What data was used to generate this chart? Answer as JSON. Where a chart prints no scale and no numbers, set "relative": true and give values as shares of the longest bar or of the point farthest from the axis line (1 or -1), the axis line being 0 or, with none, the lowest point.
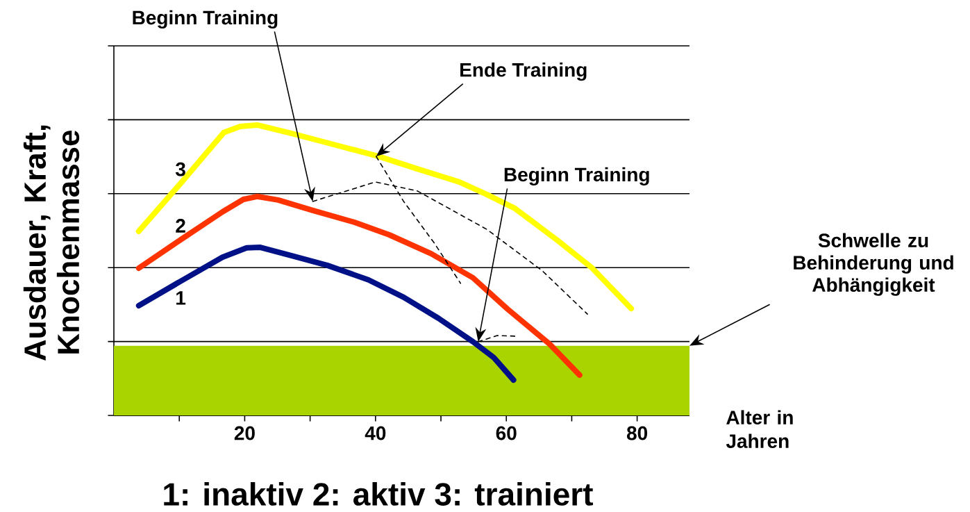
{
  "chart_data": {
    "type": "line",
    "relative": true,
    "xlabel": "Alter in Jahren",
    "ylabel": "Ausdauer, Kraft, Knochenmasse",
    "xlim": [
      0,
      88
    ],
    "xticks": [
      {
        "value": 10,
        "label": null
      },
      20,
      {
        "value": 30,
        "label": null
      },
      40,
      {
        "value": 50,
        "label": null
      },
      60,
      {
        "value": 70,
        "label": null
      },
      80
    ],
    "grid": "y",
    "series": [
      {
        "name": "3",
        "color": "#ffff00",
        "x": [
          3.8,
          10.2,
          16.8,
          19.3,
          21.9,
          27.2,
          33.6,
          40.5,
          46.4,
          52.8,
          57.0,
          61.3,
          67.7,
          73.0,
          79.1
        ],
        "values": [
          0.634,
          0.799,
          0.974,
          0.995,
          1.0,
          0.971,
          0.933,
          0.892,
          0.849,
          0.804,
          0.761,
          0.713,
          0.605,
          0.51,
          0.368
        ]
      },
      {
        "name": "2",
        "color": "#ff3300",
        "x": [
          3.8,
          10.2,
          16.6,
          19.8,
          21.9,
          25.1,
          30.4,
          36.8,
          42.1,
          48.5,
          54.9,
          60.2,
          66.6,
          71.2
        ],
        "values": [
          0.507,
          0.605,
          0.701,
          0.744,
          0.754,
          0.742,
          0.706,
          0.665,
          0.622,
          0.557,
          0.474,
          0.366,
          0.246,
          0.139
        ]
      },
      {
        "name": "1",
        "color": "#001188",
        "x": [
          3.8,
          10.2,
          16.6,
          20.3,
          22.3,
          27.2,
          32.6,
          38.9,
          44.3,
          49.6,
          54.9,
          58.1,
          61.1
        ],
        "values": [
          0.378,
          0.462,
          0.545,
          0.577,
          0.579,
          0.55,
          0.517,
          0.467,
          0.407,
          0.335,
          0.254,
          0.199,
          0.122
        ]
      },
      {
        "type": "line",
        "color": "#000000",
        "line_style": "dashed",
        "x": [
          30.4,
          40.0,
          46.4,
          57.0,
          65.5,
          72.4
        ],
        "values": [
          0.737,
          0.804,
          0.773,
          0.641,
          0.498,
          0.349
        ]
      },
      {
        "type": "line",
        "color": "#000000",
        "line_style": "dashed",
        "x": [
          40.1,
          44.3,
          49.0,
          53.0
        ],
        "values": [
          0.892,
          0.737,
          0.593,
          0.455
        ]
      },
      {
        "type": "line",
        "color": "#000000",
        "line_style": "dashed",
        "x": [
          55.7,
          58.6,
          61.3
        ],
        "values": [
          0.254,
          0.275,
          0.273
        ]
      }
    ],
    "bands": [
      {
        "axis": "y",
        "from": 0,
        "to": 0.24,
        "color": "#aad400"
      }
    ],
    "annotations": [
      "Beginn Training",
      "Ende Training",
      "Beginn Training",
      "Schwelle zu Behinderung und Abhängigkeit",
      "1: inaktiv   2: aktiv   3: trainiert"
    ]
  }
}
